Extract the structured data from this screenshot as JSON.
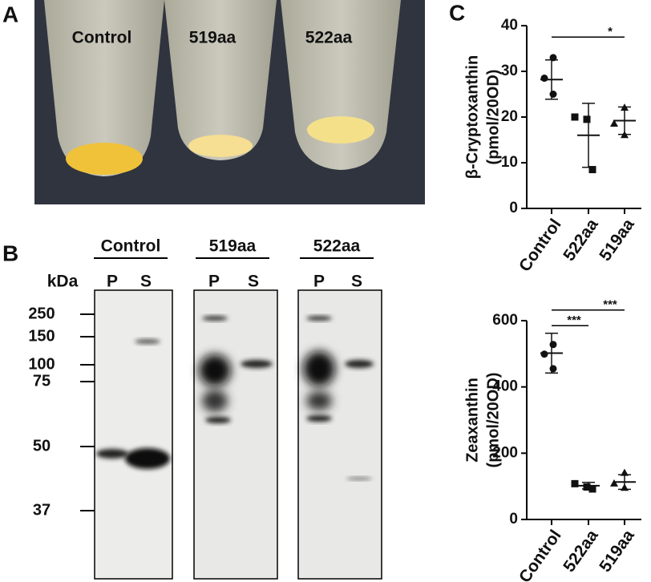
{
  "panels": {
    "A": {
      "label": "A",
      "tubes": [
        "Control",
        "519aa",
        "522aa"
      ]
    },
    "B": {
      "label": "B",
      "groups": [
        "Control",
        "519aa",
        "522aa"
      ],
      "unit": "kDa",
      "lanes": [
        "P",
        "S"
      ],
      "markers": [
        250,
        150,
        100,
        75,
        50,
        37
      ]
    },
    "C": {
      "label": "C"
    }
  },
  "chart_data": [
    {
      "type": "dot",
      "ylabel": [
        "β-Cryptoxanthin",
        "(pmol/20OD)"
      ],
      "categories": [
        "Control",
        "522aa",
        "519aa"
      ],
      "markers": [
        "circle",
        "square",
        "triangle"
      ],
      "color": "#111111",
      "points": [
        [
          33,
          28.5,
          25
        ],
        [
          20,
          19.5,
          8.5
        ],
        [
          22,
          18.5,
          16
        ]
      ],
      "means": [
        28.2,
        16,
        19.2
      ],
      "sds": [
        4.3,
        7,
        3
      ],
      "ylim": [
        0,
        40
      ],
      "yticks": [
        0,
        10,
        20,
        30,
        40
      ],
      "significance": [
        {
          "from": 0,
          "to": 2,
          "level": 37.5,
          "label": "*"
        }
      ]
    },
    {
      "type": "dot",
      "ylabel": [
        "Zeaxanthin",
        "(pmol/20OD)"
      ],
      "categories": [
        "Control",
        "522aa",
        "519aa"
      ],
      "markers": [
        "circle",
        "square",
        "triangle"
      ],
      "color": "#111111",
      "points": [
        [
          528,
          499,
          455
        ],
        [
          108,
          98,
          92
        ],
        [
          140,
          108,
          95
        ]
      ],
      "means": [
        502,
        102,
        113
      ],
      "sds": [
        60,
        10,
        22
      ],
      "ylim": [
        0,
        600
      ],
      "yticks": [
        0,
        200,
        400,
        600
      ],
      "significance": [
        {
          "from": 0,
          "to": 1,
          "level": 585,
          "label": "***"
        },
        {
          "from": 0,
          "to": 2,
          "level": 632,
          "label": "***"
        }
      ]
    }
  ]
}
